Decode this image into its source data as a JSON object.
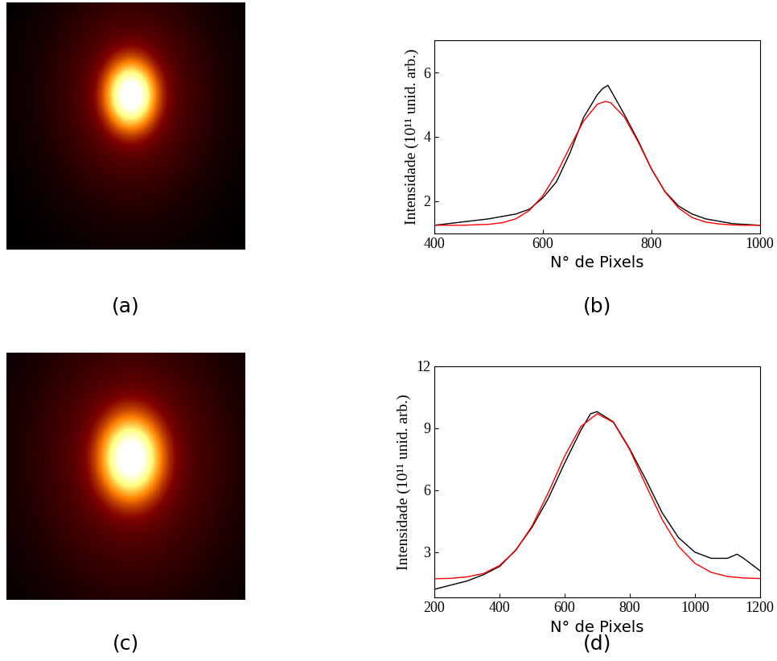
{
  "images": [
    {
      "caption": "(a)"
    },
    {
      "caption": "(c)"
    }
  ],
  "chart_data": [
    {
      "type": "line",
      "caption": "(b)",
      "x_label": "N° de Pixels",
      "y_label": "Intensidade (10¹¹ unid. arb.)",
      "xlim": [
        400,
        1000
      ],
      "xticks": [
        400,
        600,
        800,
        1000
      ],
      "ylim": [
        1,
        7
      ],
      "yticks": [
        2,
        4,
        6
      ],
      "grid": false,
      "series": [
        {
          "color": "#000000",
          "line_style": "solid",
          "x": [
            400,
            450,
            500,
            550,
            575,
            600,
            625,
            650,
            675,
            700,
            710,
            720,
            730,
            750,
            775,
            800,
            825,
            850,
            875,
            900,
            950,
            1000
          ],
          "values": [
            1.25,
            1.35,
            1.45,
            1.6,
            1.75,
            2.1,
            2.6,
            3.5,
            4.6,
            5.3,
            5.5,
            5.6,
            5.3,
            4.7,
            3.9,
            3.0,
            2.3,
            1.85,
            1.6,
            1.45,
            1.3,
            1.25
          ]
        },
        {
          "color": "#ff0000",
          "line_style": "solid",
          "x": [
            400,
            450,
            500,
            525,
            550,
            575,
            600,
            625,
            650,
            675,
            700,
            715,
            725,
            750,
            775,
            800,
            825,
            850,
            875,
            900,
            925,
            950,
            975,
            1000
          ],
          "values": [
            1.25,
            1.25,
            1.28,
            1.33,
            1.45,
            1.71,
            2.17,
            2.85,
            3.69,
            4.49,
            5.01,
            5.1,
            5.06,
            4.62,
            3.86,
            3.01,
            2.29,
            1.79,
            1.49,
            1.35,
            1.29,
            1.26,
            1.25,
            1.25
          ]
        }
      ]
    },
    {
      "type": "line",
      "caption": "(d)",
      "x_label": "N° de Pixels",
      "y_label": "Intensidade (10¹¹ unid. arb.)",
      "xlim": [
        200,
        1200
      ],
      "xticks": [
        200,
        400,
        600,
        800,
        1000,
        1200
      ],
      "ylim": [
        0.8,
        12
      ],
      "yticks": [
        3,
        6,
        9,
        12
      ],
      "grid": false,
      "series": [
        {
          "color": "#000000",
          "line_style": "solid",
          "x": [
            200,
            250,
            300,
            350,
            400,
            450,
            500,
            550,
            600,
            650,
            680,
            700,
            720,
            750,
            800,
            850,
            900,
            950,
            1000,
            1050,
            1100,
            1130,
            1150,
            1200
          ],
          "values": [
            1.2,
            1.4,
            1.6,
            1.9,
            2.3,
            3.1,
            4.2,
            5.6,
            7.3,
            8.9,
            9.7,
            9.8,
            9.6,
            9.3,
            8.0,
            6.5,
            4.9,
            3.7,
            3.0,
            2.7,
            2.7,
            2.9,
            2.7,
            2.1
          ]
        },
        {
          "color": "#ff0000",
          "line_style": "solid",
          "x": [
            200,
            250,
            300,
            350,
            400,
            450,
            500,
            550,
            600,
            650,
            700,
            750,
            800,
            850,
            900,
            950,
            1000,
            1050,
            1100,
            1150,
            1200
          ],
          "values": [
            1.71,
            1.73,
            1.8,
            1.96,
            2.35,
            3.08,
            4.26,
            5.88,
            7.64,
            9.08,
            9.7,
            9.28,
            7.96,
            6.23,
            4.57,
            3.28,
            2.46,
            2.02,
            1.82,
            1.75,
            1.72
          ]
        }
      ]
    }
  ]
}
